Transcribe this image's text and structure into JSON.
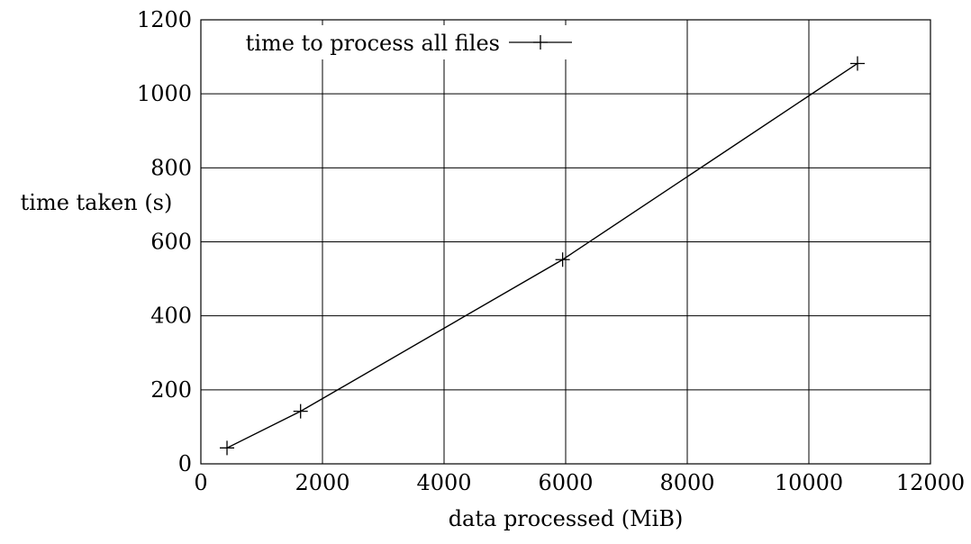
{
  "chart_data": {
    "type": "line",
    "title": "",
    "xlabel": "data processed (MiB)",
    "ylabel": "time taken (s)",
    "xlim": [
      0,
      12000
    ],
    "ylim": [
      0,
      1200
    ],
    "x_ticks": [
      0,
      2000,
      4000,
      6000,
      8000,
      10000,
      12000
    ],
    "y_ticks": [
      0,
      200,
      400,
      600,
      800,
      1000,
      1200
    ],
    "grid": true,
    "legend_position": "top-left",
    "series": [
      {
        "name": "time to process all files",
        "color": "#000000",
        "marker": "plus",
        "x": [
          430,
          1640,
          5950,
          10800
        ],
        "y": [
          43,
          142,
          552,
          1082
        ]
      }
    ]
  }
}
